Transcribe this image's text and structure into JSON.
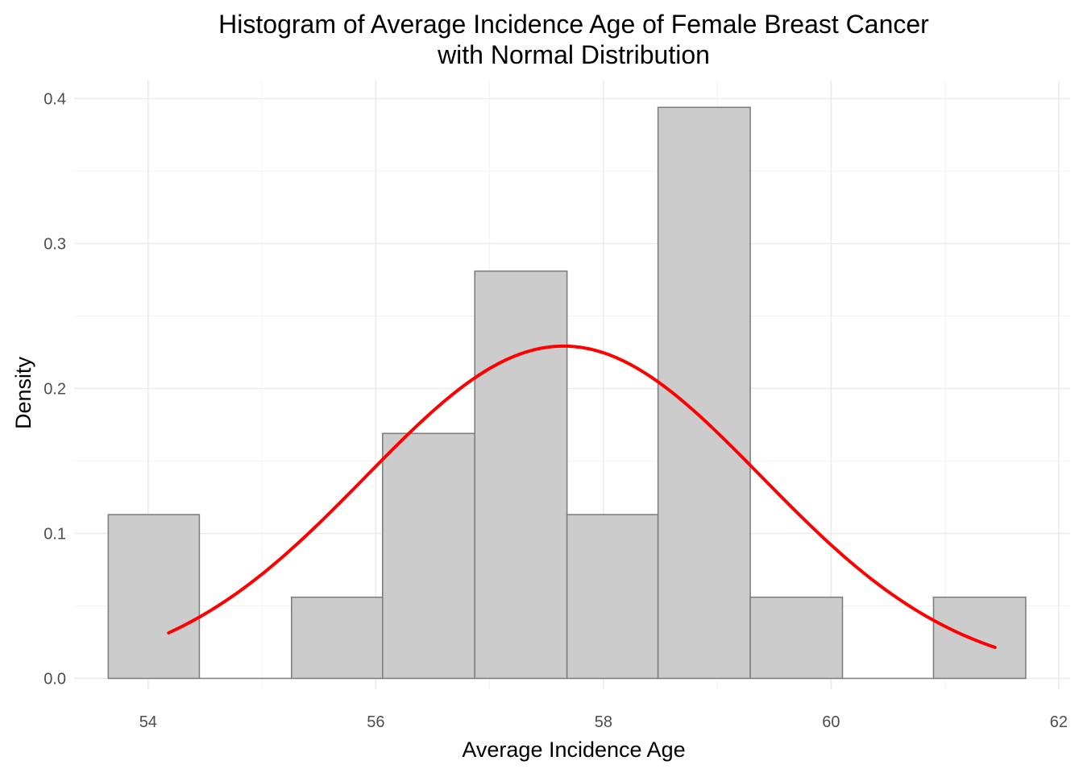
{
  "chart_data": {
    "type": "bar",
    "title_lines": [
      "Histogram of Average Incidence Age of Female Breast Cancer",
      "with Normal Distribution"
    ],
    "xlabel": "Average Incidence Age",
    "ylabel": "Density",
    "xlim": [
      53.35,
      62.1
    ],
    "ylim": [
      -0.0075,
      0.4125
    ],
    "x_ticks": [
      54,
      56,
      58,
      60,
      62
    ],
    "x_tick_labels": [
      "54",
      "56",
      "58",
      "60",
      "62"
    ],
    "y_ticks": [
      0.0,
      0.1,
      0.2,
      0.3,
      0.4
    ],
    "y_tick_labels": [
      "0.0",
      "0.1",
      "0.2",
      "0.3",
      "0.4"
    ],
    "grid": true,
    "legend": "none",
    "bins": [
      {
        "x0": 53.65,
        "x1": 54.45,
        "density": 0.113
      },
      {
        "x0": 54.45,
        "x1": 55.26,
        "density": 0.0
      },
      {
        "x0": 55.26,
        "x1": 56.06,
        "density": 0.056
      },
      {
        "x0": 56.06,
        "x1": 56.87,
        "density": 0.169
      },
      {
        "x0": 56.87,
        "x1": 57.68,
        "density": 0.281
      },
      {
        "x0": 57.68,
        "x1": 58.48,
        "density": 0.113
      },
      {
        "x0": 58.48,
        "x1": 59.29,
        "density": 0.394
      },
      {
        "x0": 59.29,
        "x1": 60.1,
        "density": 0.056
      },
      {
        "x0": 60.1,
        "x1": 60.9,
        "density": 0.0
      },
      {
        "x0": 60.9,
        "x1": 61.71,
        "density": 0.056
      }
    ],
    "normal_curve": {
      "color": "#ff0000",
      "mean": 57.65,
      "sd": 1.74,
      "x_range": [
        54.18,
        61.44
      ]
    },
    "colors": {
      "bar_fill": "#cccccc",
      "bar_outline": "#7f7f7f",
      "curve": "#ff0000"
    }
  }
}
